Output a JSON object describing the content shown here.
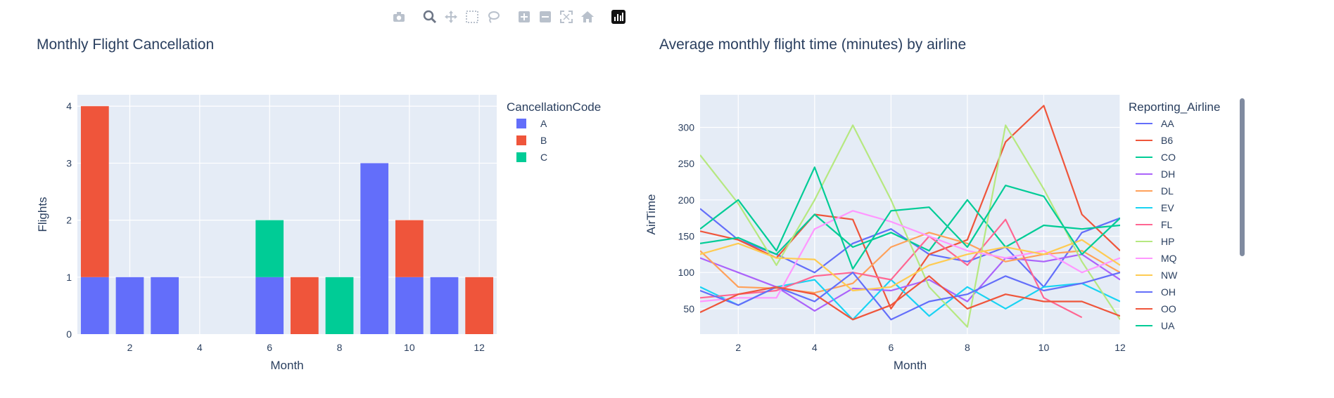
{
  "modebar": {
    "icons": [
      "camera-icon",
      "zoom-icon",
      "pan-icon",
      "box-select-icon",
      "lasso-icon",
      "zoom-in-icon",
      "zoom-out-icon",
      "autoscale-icon",
      "reset-axes-icon",
      "plotly-logo-icon"
    ]
  },
  "colors": {
    "plot_bg": "#e5ecf6",
    "grid": "#ffffff",
    "text": "#2a3f5f",
    "A": "#636efa",
    "B": "#ef553b",
    "C": "#00cc96"
  },
  "chart_data": [
    {
      "type": "bar",
      "barmode": "stack",
      "title": "Monthly Flight Cancellation",
      "xlabel": "Month",
      "ylabel": "Flights",
      "xlim": [
        0.5,
        12.5
      ],
      "ylim": [
        0,
        4.2
      ],
      "xticks": [
        2,
        4,
        6,
        8,
        10,
        12
      ],
      "yticks": [
        0,
        1,
        2,
        3,
        4
      ],
      "grid": true,
      "legend_title": "CancellationCode",
      "legend_position": "right",
      "categories": [
        1,
        2,
        3,
        4,
        5,
        6,
        7,
        8,
        9,
        10,
        11,
        12
      ],
      "series": [
        {
          "name": "A",
          "color": "#636efa",
          "values": [
            1,
            1,
            1,
            0,
            0,
            1,
            0,
            0,
            3,
            1,
            1,
            0
          ]
        },
        {
          "name": "B",
          "color": "#ef553b",
          "values": [
            3,
            0,
            0,
            0,
            0,
            0,
            1,
            0,
            0,
            1,
            0,
            1
          ]
        },
        {
          "name": "C",
          "color": "#00cc96",
          "values": [
            0,
            0,
            0,
            0,
            0,
            1,
            0,
            1,
            0,
            0,
            0,
            0
          ]
        }
      ]
    },
    {
      "type": "line",
      "title": "Average monthly flight time (minutes) by airline",
      "xlabel": "Month",
      "ylabel": "AirTime",
      "xlim": [
        1,
        12
      ],
      "ylim": [
        15,
        345
      ],
      "xticks": [
        2,
        4,
        6,
        8,
        10,
        12
      ],
      "yticks": [
        50,
        100,
        150,
        200,
        250,
        300
      ],
      "grid": true,
      "legend_title": "Reporting_Airline",
      "legend_position": "right",
      "x": [
        1,
        2,
        3,
        4,
        5,
        6,
        7,
        8,
        9,
        10,
        11,
        12
      ],
      "series": [
        {
          "name": "AA",
          "color": "#636efa",
          "values": [
            188,
            145,
            125,
            100,
            140,
            160,
            125,
            115,
            135,
            80,
            155,
            175
          ]
        },
        {
          "name": "B6",
          "color": "#ef553b",
          "values": [
            157,
            145,
            120,
            180,
            173,
            50,
            125,
            145,
            280,
            330,
            180,
            130
          ]
        },
        {
          "name": "CO",
          "color": "#00cc96",
          "values": [
            140,
            148,
            125,
            180,
            135,
            155,
            130,
            200,
            135,
            165,
            160,
            165
          ]
        },
        {
          "name": "DH",
          "color": "#ab63fa",
          "values": [
            120,
            100,
            80,
            47,
            78,
            75,
            90,
            60,
            120,
            115,
            125,
            90
          ]
        },
        {
          "name": "DL",
          "color": "#ffa15a",
          "values": [
            130,
            80,
            78,
            72,
            85,
            135,
            155,
            140,
            115,
            125,
            130,
            100
          ]
        },
        {
          "name": "EV",
          "color": "#19d3f3",
          "values": [
            80,
            55,
            80,
            90,
            35,
            90,
            40,
            80,
            50,
            80,
            85,
            60
          ]
        },
        {
          "name": "FL",
          "color": "#ff6692",
          "values": [
            65,
            70,
            75,
            95,
            100,
            90,
            150,
            110,
            173,
            65,
            38,
            null
          ]
        },
        {
          "name": "HP",
          "color": "#b6e880",
          "values": [
            262,
            195,
            110,
            200,
            303,
            200,
            80,
            25,
            303,
            215,
            115,
            35
          ]
        },
        {
          "name": "MQ",
          "color": "#ff97ff",
          "values": [
            60,
            65,
            65,
            160,
            185,
            170,
            150,
            130,
            120,
            130,
            100,
            120
          ]
        },
        {
          "name": "NW",
          "color": "#fecb52",
          "values": [
            125,
            140,
            120,
            118,
            75,
            80,
            110,
            125,
            135,
            125,
            145,
            110
          ]
        },
        {
          "name": "OH",
          "color": "#636efa",
          "values": [
            75,
            55,
            80,
            60,
            100,
            35,
            60,
            70,
            95,
            75,
            85,
            100
          ]
        },
        {
          "name": "OO",
          "color": "#ef553b",
          "values": [
            45,
            70,
            80,
            70,
            35,
            55,
            95,
            50,
            70,
            60,
            60,
            40
          ]
        },
        {
          "name": "UA",
          "color": "#00cc96",
          "values": [
            160,
            200,
            130,
            245,
            105,
            185,
            190,
            135,
            220,
            205,
            125,
            175
          ]
        }
      ]
    }
  ]
}
